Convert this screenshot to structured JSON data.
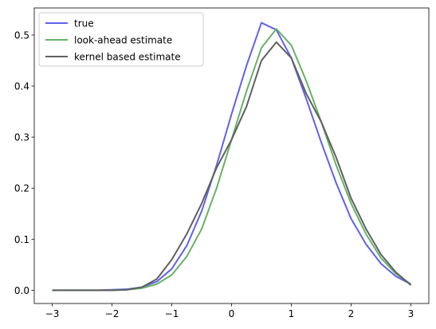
{
  "chart_data": {
    "type": "line",
    "x": [
      -3,
      -2.75,
      -2.5,
      -2.25,
      -2,
      -1.75,
      -1.5,
      -1.25,
      -1,
      -0.75,
      -0.5,
      -0.25,
      0,
      0.25,
      0.5,
      0.75,
      1,
      1.25,
      1.5,
      1.75,
      2,
      2.25,
      2.5,
      2.75,
      3
    ],
    "series": [
      {
        "name": "true",
        "color": "#6060ee",
        "values": [
          0,
          0,
          0,
          0,
          0.001,
          0.002,
          0.006,
          0.017,
          0.042,
          0.087,
          0.155,
          0.245,
          0.345,
          0.44,
          0.524,
          0.51,
          0.455,
          0.375,
          0.29,
          0.21,
          0.14,
          0.09,
          0.052,
          0.027,
          0.012
        ]
      },
      {
        "name": "look-ahead estimate",
        "color": "#66b266",
        "values": [
          0,
          0,
          0,
          0,
          0,
          0.001,
          0.004,
          0.012,
          0.03,
          0.066,
          0.12,
          0.2,
          0.295,
          0.39,
          0.475,
          0.512,
          0.48,
          0.41,
          0.33,
          0.245,
          0.17,
          0.11,
          0.063,
          0.032,
          0.012
        ]
      },
      {
        "name": "kernel based estimate",
        "color": "#606060",
        "values": [
          0,
          0,
          0,
          0,
          0,
          0.001,
          0.006,
          0.022,
          0.06,
          0.11,
          0.17,
          0.24,
          0.295,
          0.36,
          0.45,
          0.486,
          0.455,
          0.385,
          0.33,
          0.26,
          0.18,
          0.12,
          0.07,
          0.035,
          0.01
        ]
      }
    ],
    "xlim": [
      -3.3,
      3.3
    ],
    "ylim": [
      -0.026,
      0.553
    ],
    "xticks": [
      {
        "value": -3,
        "label": "−3"
      },
      {
        "value": -2,
        "label": "−2"
      },
      {
        "value": -1,
        "label": "−1"
      },
      0,
      1,
      2,
      3
    ],
    "yticks": [
      {
        "value": 0,
        "label": "0.0"
      },
      0.1,
      0.2,
      0.3,
      0.4,
      0.5
    ],
    "grid": false,
    "legend": "upper left"
  }
}
